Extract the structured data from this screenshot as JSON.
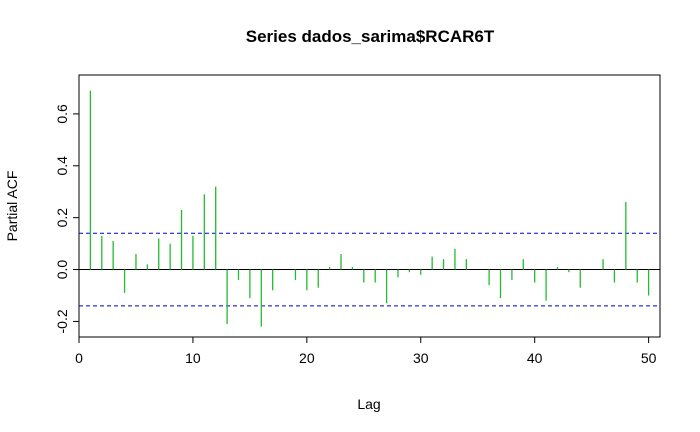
{
  "chart_data": {
    "type": "bar",
    "title": "Series  dados_sarima$RCAR6T",
    "xlabel": "Lag",
    "ylabel": "Partial ACF",
    "xlim": [
      0,
      51
    ],
    "ylim": [
      -0.26,
      0.75
    ],
    "x_ticks": [
      0,
      10,
      20,
      30,
      40,
      50
    ],
    "y_ticks": [
      -0.2,
      0.0,
      0.2,
      0.4,
      0.6
    ],
    "x_tick_labels": [
      "0",
      "10",
      "20",
      "30",
      "40",
      "50"
    ],
    "y_tick_labels": [
      "-0.2",
      "0.0",
      "0.2",
      "0.4",
      "0.6"
    ],
    "confidence_bound": 0.14,
    "bar_color": "#22bb33",
    "bound_color": "#0000cc",
    "grid": false,
    "lags": [
      1,
      2,
      3,
      4,
      5,
      6,
      7,
      8,
      9,
      10,
      11,
      12,
      13,
      14,
      15,
      16,
      17,
      18,
      19,
      20,
      21,
      22,
      23,
      24,
      25,
      26,
      27,
      28,
      29,
      30,
      31,
      32,
      33,
      34,
      35,
      36,
      37,
      38,
      39,
      40,
      41,
      42,
      43,
      44,
      45,
      46,
      47,
      48,
      49,
      50
    ],
    "values": [
      0.69,
      0.13,
      0.11,
      -0.09,
      0.06,
      0.02,
      0.12,
      0.1,
      0.23,
      0.13,
      0.29,
      0.32,
      -0.21,
      -0.04,
      -0.11,
      -0.22,
      -0.08,
      0.0,
      -0.04,
      -0.08,
      -0.07,
      0.01,
      0.06,
      0.01,
      -0.05,
      -0.05,
      -0.13,
      -0.03,
      -0.01,
      -0.02,
      0.05,
      0.04,
      0.08,
      0.04,
      0.0,
      -0.06,
      -0.11,
      -0.04,
      0.04,
      -0.05,
      -0.12,
      0.01,
      -0.01,
      -0.07,
      0.0,
      0.04,
      -0.05,
      0.26,
      -0.05,
      -0.1
    ]
  }
}
